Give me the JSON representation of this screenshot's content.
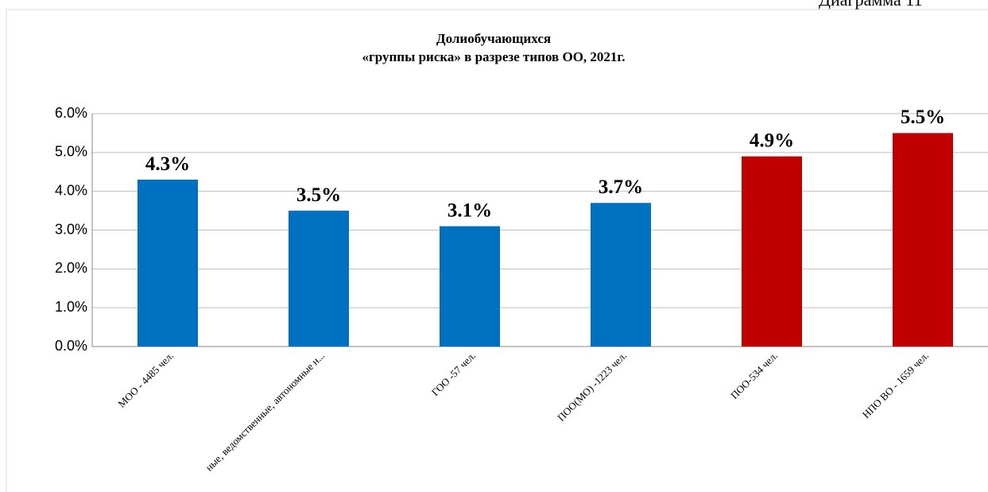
{
  "caption": "Диаграмма 11",
  "chart_data": {
    "type": "bar",
    "title": [
      "Долиобучающихся",
      "«группы риска» в разрезе типов ОО, 2021г."
    ],
    "categories": [
      "МОО - 4485 чел.",
      "ные, ведомственные, автономные н...",
      "ГОО -57 чел.",
      "ПОО(МО) -1223 чел.",
      "ПОО-534 чел.",
      "НПО ВО - 1659 чел."
    ],
    "values": [
      4.3,
      3.5,
      3.1,
      3.7,
      4.9,
      5.5
    ],
    "value_labels": [
      "4.3%",
      "3.5%",
      "3.1%",
      "3.7%",
      "4.9%",
      "5.5%"
    ],
    "colors": [
      "#0070c0",
      "#0070c0",
      "#0070c0",
      "#0070c0",
      "#c00000",
      "#c00000"
    ],
    "ylim": [
      0,
      6
    ],
    "yticks": [
      {
        "value": 0,
        "label": "0.0%"
      },
      {
        "value": 1,
        "label": "1.0%"
      },
      {
        "value": 2,
        "label": "2.0%"
      },
      {
        "value": 3,
        "label": "3.0%"
      },
      {
        "value": 4,
        "label": "4.0%"
      },
      {
        "value": 5,
        "label": "5.0%"
      },
      {
        "value": 6,
        "label": "6.0%"
      }
    ],
    "grid": true
  }
}
